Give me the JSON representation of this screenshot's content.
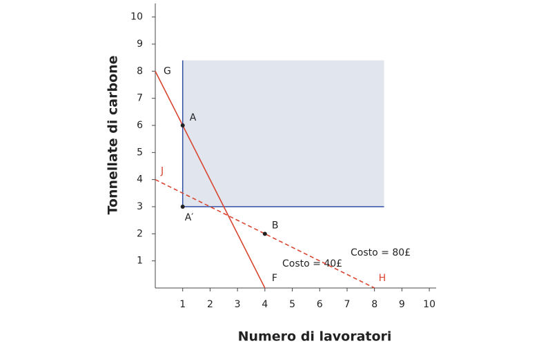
{
  "chart_data": {
    "type": "line",
    "x_label": "Numero di lavoratori",
    "y_label": "Tonnellate di carbone",
    "xlim": [
      0,
      10.25
    ],
    "ylim": [
      0,
      10.5
    ],
    "xticks": [
      1,
      2,
      3,
      4,
      5,
      6,
      7,
      8,
      9,
      10
    ],
    "yticks": [
      1,
      2,
      3,
      4,
      5,
      6,
      7,
      8,
      9,
      10
    ],
    "region": {
      "x": [
        1,
        8.35
      ],
      "y": [
        3,
        8.4
      ],
      "fill": "#e1e5ee",
      "edge_color": "#2e4fa3"
    },
    "series": [
      {
        "label": "Costo = 40£",
        "start_label": "G",
        "end_label": "F",
        "color": "#d9442f",
        "dashed": false,
        "x": [
          0,
          4
        ],
        "values": [
          8,
          0
        ]
      },
      {
        "label": "Costo = 80£",
        "start_label": "J",
        "end_label": "H",
        "color": "#d9442f",
        "dashed": true,
        "x": [
          0,
          8
        ],
        "values": [
          4,
          0
        ]
      }
    ],
    "points": [
      {
        "label": "A",
        "x": 1,
        "y": 6
      },
      {
        "label": "A′",
        "x": 1,
        "y": 3
      },
      {
        "label": "B",
        "x": 4,
        "y": 2
      }
    ]
  }
}
